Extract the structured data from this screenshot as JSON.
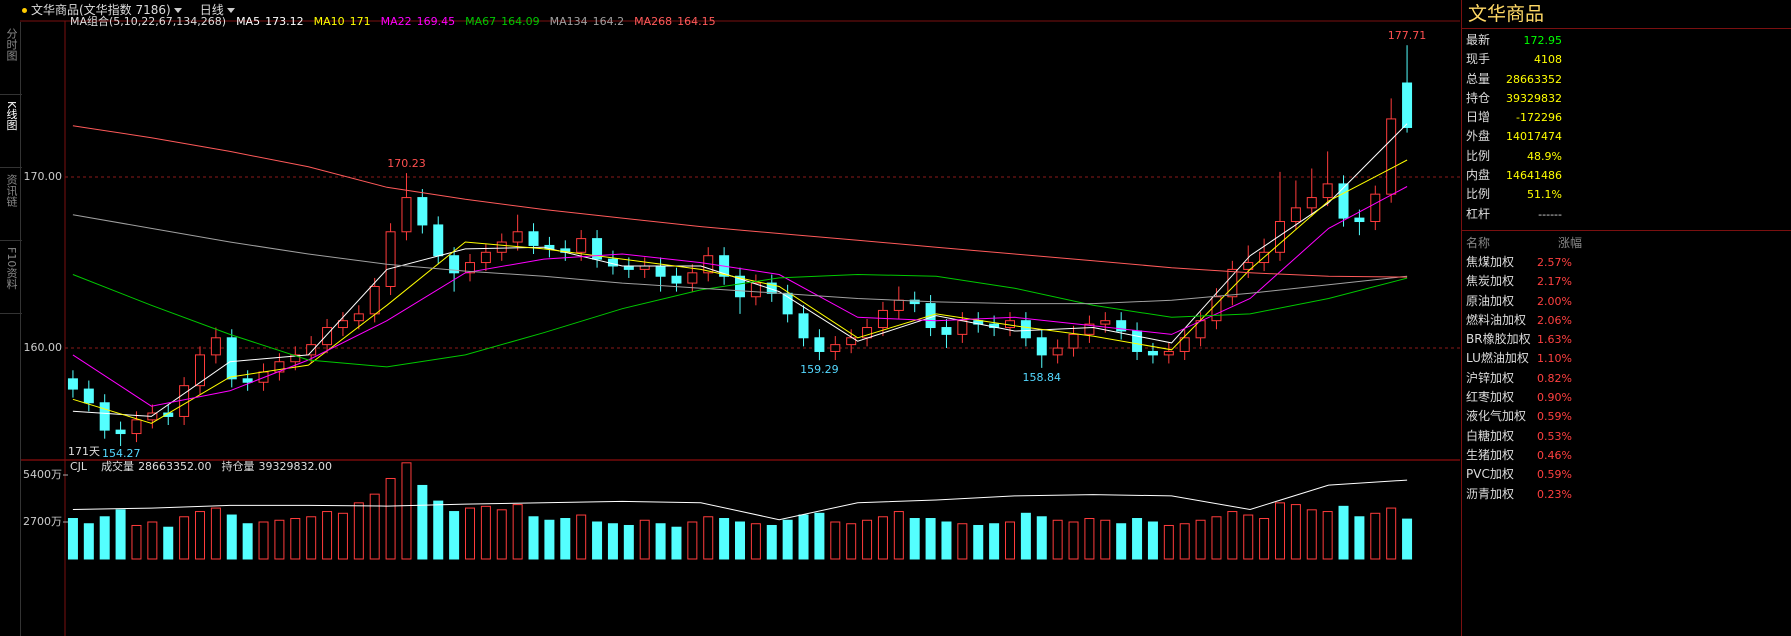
{
  "toolbar": {
    "instrument": "文华商品(文华指数 7186)",
    "period": "日线"
  },
  "sidebar": {
    "tabs": [
      "分时图",
      "K线图",
      "资讯链",
      "F10资料"
    ]
  },
  "chart_data": {
    "type": "candlestick",
    "ylim": [
      153.57,
      178.6
    ],
    "yticks": [
      {
        "value": 160,
        "label": "160.00"
      },
      {
        "value": 170,
        "label": "170.00"
      }
    ],
    "grid": true,
    "up_color": "#ff3c3c",
    "down_color": "#54ffff",
    "open": [
      158.2,
      157.6,
      156.8,
      155.2,
      155.0,
      155.8,
      156.2,
      156.0,
      157.8,
      159.6,
      160.6,
      158.2,
      158.0,
      158.6,
      159.2,
      159.6,
      160.2,
      161.2,
      161.6,
      162.0,
      163.6,
      166.8,
      168.8,
      167.2,
      165.4,
      164.4,
      165.0,
      165.6,
      166.2,
      166.8,
      166.0,
      165.8,
      165.6,
      166.4,
      165.2,
      164.8,
      164.6,
      164.8,
      164.2,
      163.8,
      164.4,
      165.4,
      164.2,
      163.0,
      163.8,
      163.2,
      162.0,
      160.6,
      159.8,
      160.2,
      160.6,
      161.2,
      162.2,
      162.8,
      162.6,
      161.2,
      160.8,
      161.6,
      161.4,
      161.2,
      161.6,
      160.6,
      159.6,
      160.0,
      160.8,
      161.4,
      161.6,
      161.0,
      159.8,
      159.6,
      159.8,
      160.6,
      161.6,
      163.0,
      164.6,
      165.0,
      165.6,
      167.4,
      168.2,
      168.8,
      169.6,
      167.6,
      167.4,
      169.0,
      175.5
    ],
    "high": [
      158.7,
      158.1,
      157.3,
      155.7,
      156.3,
      156.7,
      156.7,
      158.3,
      160.1,
      161.2,
      161.1,
      158.7,
      159.1,
      159.7,
      160.1,
      160.7,
      161.7,
      162.1,
      162.5,
      164.1,
      167.3,
      170.23,
      169.3,
      167.7,
      165.9,
      165.5,
      166.1,
      166.7,
      167.8,
      167.3,
      166.5,
      166.3,
      166.9,
      166.9,
      165.7,
      165.3,
      165.3,
      165.3,
      164.7,
      164.9,
      165.9,
      165.9,
      164.7,
      164.3,
      164.3,
      163.7,
      162.5,
      161.1,
      160.7,
      161.1,
      161.7,
      162.7,
      163.6,
      163.3,
      163.1,
      161.7,
      162.1,
      162.1,
      161.9,
      162.1,
      162.1,
      161.1,
      160.5,
      161.3,
      161.9,
      162.1,
      162.1,
      161.5,
      160.3,
      160.3,
      161.1,
      162.1,
      163.5,
      165.1,
      166.0,
      166.4,
      170.3,
      169.8,
      170.5,
      171.5,
      170.1,
      168.1,
      169.5,
      174.6,
      177.71
    ],
    "low": [
      157.1,
      156.3,
      154.7,
      154.27,
      154.5,
      155.3,
      155.5,
      155.5,
      157.3,
      159.1,
      157.7,
      157.5,
      157.5,
      158.1,
      158.7,
      159.1,
      159.7,
      160.7,
      161.1,
      161.5,
      163.1,
      166.3,
      166.7,
      164.9,
      163.3,
      163.9,
      164.5,
      165.1,
      165.7,
      165.5,
      165.3,
      165.1,
      165.1,
      164.7,
      164.3,
      164.1,
      164.1,
      163.3,
      163.3,
      163.3,
      163.9,
      163.7,
      162.0,
      162.5,
      162.7,
      161.5,
      160.1,
      159.29,
      159.3,
      159.7,
      160.1,
      160.7,
      161.7,
      162.1,
      160.7,
      160.0,
      160.3,
      160.9,
      160.7,
      160.7,
      160.1,
      158.84,
      159.1,
      159.5,
      160.3,
      160.9,
      160.5,
      159.3,
      159.1,
      159.1,
      159.3,
      160.1,
      161.1,
      162.5,
      164.1,
      164.5,
      165.1,
      166.9,
      167.7,
      168.3,
      167.1,
      166.6,
      166.9,
      168.5,
      172.6
    ],
    "close": [
      157.6,
      156.8,
      155.2,
      155.0,
      155.8,
      156.2,
      156.0,
      157.8,
      159.6,
      160.6,
      158.2,
      158.0,
      158.6,
      159.2,
      159.6,
      160.2,
      161.2,
      161.6,
      162.0,
      163.6,
      166.8,
      168.8,
      167.2,
      165.4,
      164.4,
      165.0,
      165.6,
      166.2,
      166.8,
      166.0,
      165.8,
      165.6,
      166.4,
      165.2,
      164.8,
      164.6,
      164.8,
      164.2,
      163.8,
      164.4,
      165.4,
      164.2,
      163.0,
      163.8,
      163.2,
      162.0,
      160.6,
      159.8,
      160.2,
      160.6,
      161.2,
      162.2,
      162.8,
      162.6,
      161.2,
      160.8,
      161.6,
      161.4,
      161.2,
      161.6,
      160.6,
      159.6,
      160.0,
      160.8,
      161.4,
      161.6,
      161.0,
      159.8,
      159.6,
      159.8,
      160.6,
      161.6,
      163.0,
      164.6,
      165.0,
      165.6,
      167.4,
      168.2,
      168.8,
      169.6,
      167.6,
      167.4,
      169.0,
      173.4,
      172.9
    ],
    "ma_title": "MA组合(5,10,22,67,134,268)",
    "series": [
      {
        "name": "MA5",
        "color": "#ffffff",
        "values": [
          156.3,
          156.0,
          159.2,
          159.6,
          164.6,
          165.8,
          165.9,
          164.8,
          164.8,
          163.3,
          160.4,
          161.9,
          161.0,
          161.2,
          160.3,
          165.4,
          168.5,
          173.12
        ]
      },
      {
        "name": "MA10",
        "color": "#ffff00",
        "values": [
          157.0,
          155.6,
          158.3,
          159.0,
          162.5,
          166.2,
          165.8,
          165.2,
          164.6,
          163.6,
          160.6,
          162.0,
          161.3,
          160.7,
          159.9,
          164.6,
          168.6,
          171.0
        ]
      },
      {
        "name": "MA22",
        "color": "#ff00ff",
        "values": [
          159.6,
          156.6,
          157.5,
          159.3,
          161.6,
          164.4,
          165.2,
          165.5,
          165.0,
          164.3,
          161.8,
          161.6,
          161.8,
          161.3,
          160.8,
          162.9,
          167.0,
          169.45
        ]
      },
      {
        "name": "MA67",
        "color": "#00c800",
        "values": [
          164.3,
          162.5,
          160.8,
          159.3,
          158.9,
          159.6,
          160.9,
          162.3,
          163.4,
          164.1,
          164.3,
          164.2,
          163.5,
          162.5,
          161.8,
          162.0,
          162.9,
          164.09
        ]
      },
      {
        "name": "MA134",
        "color": "#a0a0a0",
        "values": [
          167.8,
          167.0,
          166.2,
          165.5,
          164.9,
          164.5,
          164.2,
          163.8,
          163.5,
          163.2,
          162.9,
          162.7,
          162.6,
          162.6,
          162.8,
          163.2,
          163.7,
          164.2
        ]
      },
      {
        "name": "MA268",
        "color": "#ff5a5a",
        "values": [
          173.0,
          172.3,
          171.5,
          170.6,
          169.4,
          168.7,
          168.1,
          167.6,
          167.1,
          166.7,
          166.3,
          165.9,
          165.5,
          165.1,
          164.7,
          164.4,
          164.2,
          164.15
        ]
      }
    ],
    "range_label": "171天",
    "volume": {
      "label": "CJL",
      "total_label": "成交量",
      "total": "28663352.00",
      "hold_label": "持仓量",
      "hold_total": "39329832.00",
      "ylim": [
        689,
        6147
      ],
      "yticks": [
        {
          "value": 2700,
          "label": "2700万"
        },
        {
          "value": 5400,
          "label": "5400万"
        }
      ],
      "values": [
        2900,
        2600,
        3000,
        3400,
        2500,
        2700,
        2400,
        3000,
        3300,
        3500,
        3100,
        2600,
        2700,
        2800,
        2900,
        3000,
        3300,
        3200,
        3800,
        4300,
        5200,
        6100,
        4800,
        3900,
        3300,
        3500,
        3600,
        3400,
        3700,
        3000,
        2800,
        2900,
        3100,
        2700,
        2600,
        2500,
        2800,
        2600,
        2400,
        2700,
        3000,
        2900,
        2700,
        2600,
        2500,
        2800,
        3100,
        3200,
        2700,
        2600,
        2800,
        3000,
        3300,
        2900,
        2900,
        2700,
        2600,
        2500,
        2600,
        2700,
        3200,
        3000,
        2800,
        2700,
        2900,
        2800,
        2600,
        2900,
        2700,
        2500,
        2600,
        2800,
        3000,
        3300,
        3100,
        2900,
        3800,
        3700,
        3400,
        3300,
        3600,
        3000,
        3200,
        3500,
        2866
      ],
      "hold": {
        "color": "#ffffff",
        "y2lim": [
          2800,
          4200
        ],
        "values": [
          3500,
          3520,
          3560,
          3560,
          3550,
          3580,
          3600,
          3620,
          3600,
          3350,
          3600,
          3640,
          3700,
          3720,
          3700,
          3500,
          3860,
          3933
        ]
      }
    }
  },
  "quote_panel": {
    "title": "文华商品",
    "rows": [
      [
        "最新",
        "172.95"
      ],
      [
        "现手",
        "4108"
      ],
      [
        "总量",
        "28663352"
      ],
      [
        "持仓",
        "39329832"
      ],
      [
        "日增",
        "-172296"
      ],
      [
        "外盘",
        "14017474"
      ],
      [
        "比例",
        "48.9%"
      ],
      [
        "内盘",
        "14641486"
      ],
      [
        "比例",
        "51.1%"
      ],
      [
        "杠杆",
        "------"
      ]
    ],
    "list_header": [
      "名称",
      "涨幅"
    ],
    "list": [
      [
        "焦煤加权",
        "2.57%"
      ],
      [
        "焦炭加权",
        "2.17%"
      ],
      [
        "原油加权",
        "2.00%"
      ],
      [
        "燃料油加权",
        "2.06%"
      ],
      [
        "BR橡胶加权",
        "1.63%"
      ],
      [
        "LU燃油加权",
        "1.10%"
      ],
      [
        "沪锌加权",
        "0.82%"
      ],
      [
        "红枣加权",
        "0.90%"
      ],
      [
        "液化气加权",
        "0.59%"
      ],
      [
        "白糖加权",
        "0.53%"
      ],
      [
        "生猪加权",
        "0.46%"
      ],
      [
        "PVC加权",
        "0.59%"
      ],
      [
        "沥青加权",
        "0.23%"
      ]
    ]
  }
}
